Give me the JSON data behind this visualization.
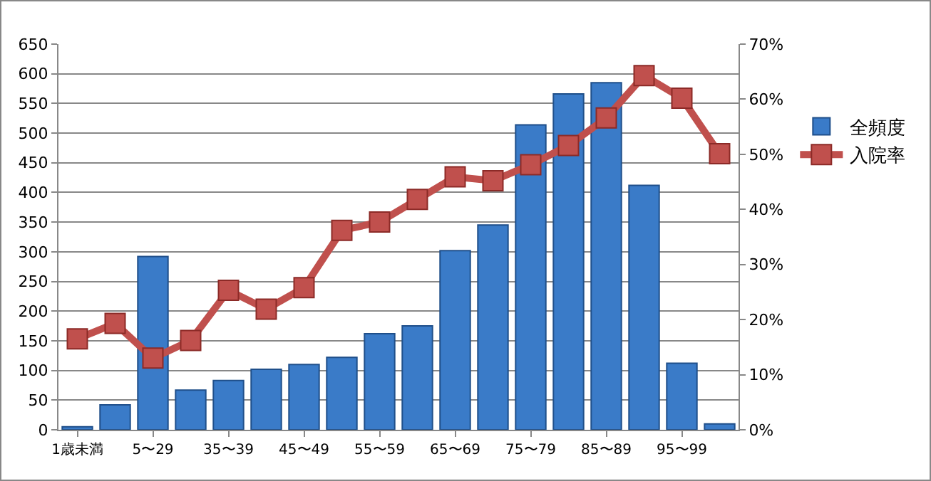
{
  "chart_data": {
    "type": "bar",
    "categories": [
      "1歳未満",
      null,
      "5〜29",
      null,
      "35〜39",
      null,
      "45〜49",
      null,
      "55〜59",
      null,
      "65〜69",
      null,
      "75〜79",
      null,
      "85〜89",
      null,
      "95〜99",
      null
    ],
    "series": [
      {
        "name": "全頻度",
        "color": "#3a7bc8",
        "values": [
          5,
          42,
          292,
          67,
          83,
          102,
          110,
          122,
          162,
          175,
          302,
          345,
          514,
          566,
          585,
          412,
          112,
          10
        ]
      },
      {
        "name": "入院率",
        "type": "line",
        "axis": "y2",
        "color": "#c0504d",
        "marker": "square",
        "values": [
          16.5,
          19.3,
          13,
          16.2,
          25.3,
          21.9,
          25.8,
          36.2,
          37.7,
          41.8,
          45.9,
          45.2,
          48.1,
          51.6,
          56.6,
          64.3,
          60.2,
          50.1
        ]
      }
    ],
    "ylim": [
      0,
      650
    ],
    "yticks": [
      0,
      50,
      100,
      150,
      200,
      250,
      300,
      350,
      400,
      450,
      500,
      550,
      600,
      650
    ],
    "y2lim": [
      0,
      70
    ],
    "y2ticks": [
      {
        "value": 0,
        "label": "0%"
      },
      {
        "value": 10,
        "label": "10%"
      },
      {
        "value": 20,
        "label": "20%"
      },
      {
        "value": 30,
        "label": "30%"
      },
      {
        "value": 40,
        "label": "40%"
      },
      {
        "value": 50,
        "label": "50%"
      },
      {
        "value": 60,
        "label": "60%"
      },
      {
        "value": 70,
        "label": "70%"
      }
    ],
    "grid": "y",
    "legend": "right"
  }
}
